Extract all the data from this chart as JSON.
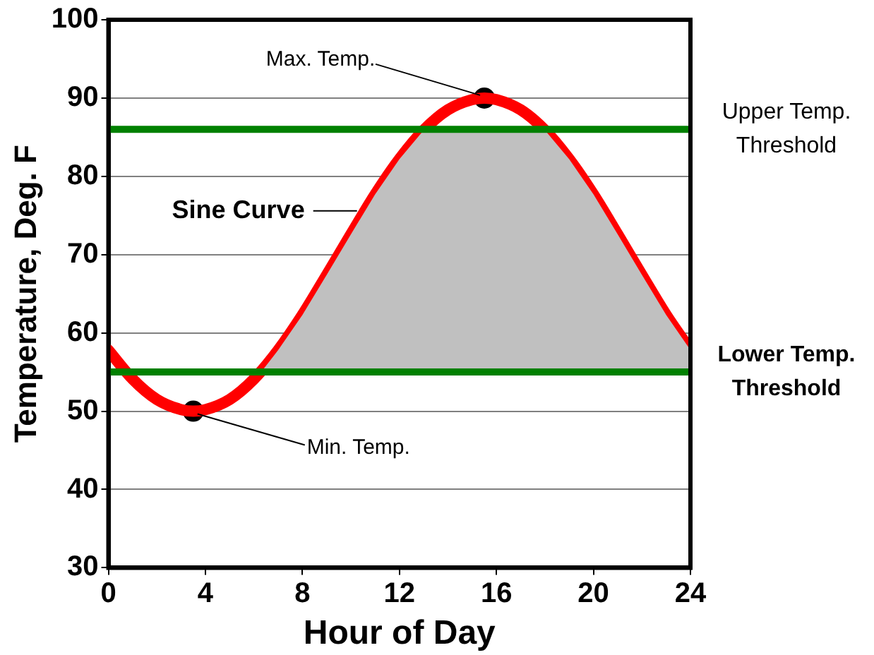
{
  "chart_data": {
    "type": "line",
    "xlabel": "Hour of Day",
    "ylabel": "Temperature, Deg. F",
    "xlim": [
      0,
      24
    ],
    "xticks": [
      0,
      4,
      8,
      12,
      16,
      20,
      24
    ],
    "ylim": [
      30,
      100
    ],
    "yticks": [
      30,
      40,
      50,
      60,
      70,
      80,
      90,
      100
    ],
    "grid": "y",
    "legend": false,
    "series": [
      {
        "type": "area",
        "color": "#c0c0c0",
        "x": [
          6.3,
          7,
          8,
          9,
          10,
          11,
          12,
          13,
          13.1,
          14,
          15,
          16,
          17,
          17.9,
          18,
          19,
          20,
          21,
          22,
          23,
          24
        ],
        "values": [
          55,
          57.8,
          62.3,
          67.4,
          72.6,
          77.7,
          82.2,
          85.9,
          86,
          86,
          86,
          86,
          86,
          86,
          85.9,
          82.2,
          77.7,
          72.6,
          67.4,
          62.3,
          57.8
        ]
      },
      {
        "color": "#ff0000",
        "marker": "none",
        "x": [
          0,
          1,
          2,
          3,
          3.5,
          4,
          5,
          6,
          7,
          8,
          9,
          10,
          11,
          12,
          13,
          14,
          15,
          15.5,
          16,
          17,
          18,
          19,
          20,
          21,
          22,
          23,
          24
        ],
        "values": [
          57.8,
          54.1,
          51.5,
          50.2,
          50,
          50.2,
          51.5,
          54.1,
          57.8,
          62.3,
          67.4,
          72.6,
          77.7,
          82.2,
          85.9,
          88.5,
          89.8,
          90,
          89.8,
          88.5,
          85.9,
          82.2,
          77.7,
          72.6,
          67.4,
          62.3,
          57.8
        ]
      },
      {
        "type": "scatter",
        "color": "#000000",
        "marker": "circle",
        "x": [
          3.5,
          15.5
        ],
        "values": [
          50,
          90
        ]
      }
    ],
    "ref_lines": [
      {
        "axis": "y",
        "value": 86,
        "label": "Upper Temp. Threshold",
        "color": "#008000"
      },
      {
        "axis": "y",
        "value": 55,
        "label": "Lower Temp. Threshold",
        "color": "#008000"
      }
    ],
    "annotations": [
      {
        "text": "Max. Temp.",
        "x": 15.5,
        "y": 90
      },
      {
        "text": "Sine Curve",
        "x": 10.6,
        "y": 75.6
      },
      {
        "text": "Min. Temp.",
        "x": 3.5,
        "y": 50
      }
    ]
  }
}
